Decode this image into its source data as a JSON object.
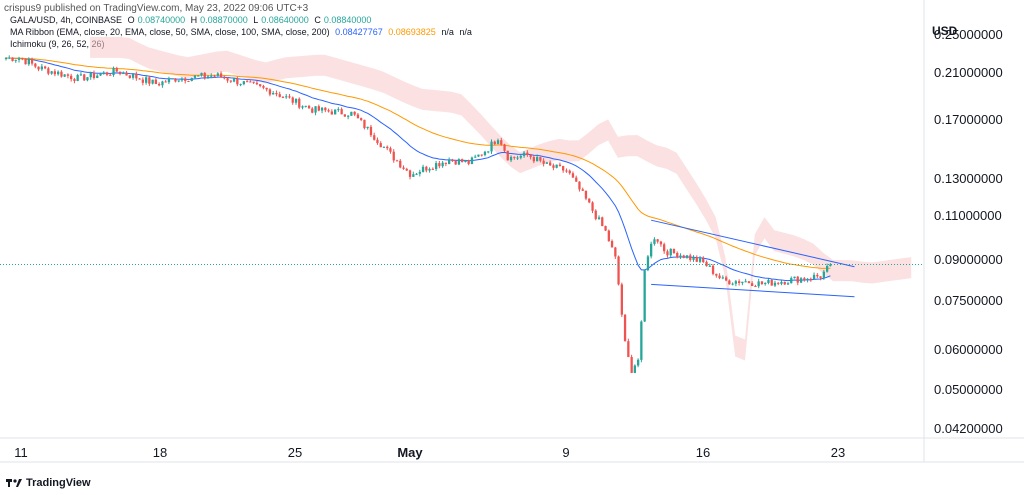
{
  "header": {
    "published": "crispus9 published on TradingView.com, May 23, 2022 09:06 UTC+3"
  },
  "legend": {
    "symbol_line": "GALA/USD, 4h, COINBASE",
    "open_label": "O",
    "open": "0.08740000",
    "high_label": "H",
    "high": "0.08870000",
    "low_label": "L",
    "low": "0.08640000",
    "close_label": "C",
    "close": "0.08840000",
    "ma_ribbon": "MA Ribbon (EMA, close, 20, EMA, close, 50, SMA, close, 100, SMA, close, 200)",
    "ma_val1": "0.08427767",
    "ma_val2": "0.08693825",
    "ma_val3": "n/a",
    "ma_val4": "n/a",
    "ichimoku": "Ichimoku (9, 26, 52, 26)"
  },
  "footer": {
    "brand": "TradingView"
  },
  "colors": {
    "up": "#26a69a",
    "down": "#ef5350",
    "ema20": "#2962ff",
    "ema50": "#ff9800",
    "trendline": "#2962ff",
    "cloud_bear": "#f8c8c8",
    "cloud_bull": "#c8e6c9"
  },
  "chart_data": {
    "type": "candlestick",
    "symbol": "GALA/USD",
    "interval": "4h",
    "exchange": "COINBASE",
    "y_unit": "USD",
    "y_scale": "log",
    "ylim": [
      0.0405,
      0.272
    ],
    "y_ticks": [
      "0.25000000",
      "0.21000000",
      "0.17000000",
      "0.13000000",
      "0.11000000",
      "0.09000000",
      "0.07500000",
      "0.06000000",
      "0.05000000",
      "0.04200000"
    ],
    "x_ticks": [
      "11",
      "18",
      "25",
      "May",
      "9",
      "16",
      "23"
    ],
    "current_price": 0.0884,
    "ohlc": {
      "open": 0.0874,
      "high": 0.0887,
      "low": 0.0864,
      "close": 0.0884
    },
    "ema20_last": 0.08427767,
    "ema50_last": 0.08693825,
    "close_path": [
      [
        11,
        0.225
      ],
      [
        12,
        0.215
      ],
      [
        14,
        0.205
      ],
      [
        16,
        0.212
      ],
      [
        18,
        0.2
      ],
      [
        19,
        0.205
      ],
      [
        21,
        0.208
      ],
      [
        22,
        0.203
      ],
      [
        24,
        0.193
      ],
      [
        25,
        0.185
      ],
      [
        26,
        0.178
      ],
      [
        28,
        0.175
      ],
      [
        29,
        0.16
      ],
      [
        30,
        0.145
      ],
      [
        31,
        0.133
      ],
      [
        32,
        0.138
      ],
      [
        33,
        0.142
      ],
      [
        34,
        0.14
      ],
      [
        35,
        0.15
      ],
      [
        35.5,
        0.158
      ],
      [
        36,
        0.143
      ],
      [
        37,
        0.145
      ],
      [
        38,
        0.138
      ],
      [
        39,
        0.135
      ],
      [
        40,
        0.118
      ],
      [
        41,
        0.102
      ],
      [
        41.5,
        0.09
      ],
      [
        42,
        0.06
      ],
      [
        42.3,
        0.055
      ],
      [
        42.7,
        0.058
      ],
      [
        43,
        0.09
      ],
      [
        43.5,
        0.101
      ],
      [
        44,
        0.094
      ],
      [
        45,
        0.092
      ],
      [
        46,
        0.089
      ],
      [
        47,
        0.082
      ],
      [
        48,
        0.082
      ],
      [
        49,
        0.081
      ],
      [
        50,
        0.082
      ],
      [
        51,
        0.083
      ],
      [
        52,
        0.084
      ],
      [
        52.5,
        0.0884
      ]
    ]
  }
}
